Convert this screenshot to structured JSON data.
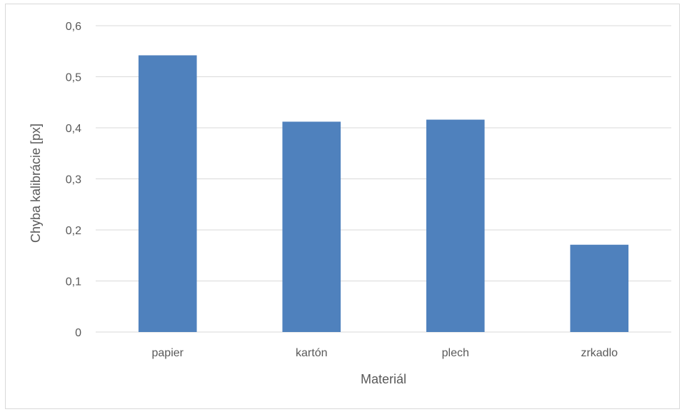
{
  "chart_data": {
    "type": "bar",
    "categories": [
      "papier",
      "kartón",
      "plech",
      "zrkadlo"
    ],
    "values": [
      0.542,
      0.412,
      0.416,
      0.171
    ],
    "title": "",
    "xlabel": "Materiál",
    "ylabel": "Chyba kalibrácie [px]",
    "ylim": [
      0,
      0.6
    ],
    "yticks": [
      0,
      0.1,
      0.2,
      0.3,
      0.4,
      0.5,
      0.6
    ],
    "ytick_labels": [
      "0",
      "0,1",
      "0,2",
      "0,3",
      "0,4",
      "0,5",
      "0,6"
    ],
    "grid": true,
    "legend": "none",
    "colors": {
      "bar": "#4f81bd"
    }
  }
}
